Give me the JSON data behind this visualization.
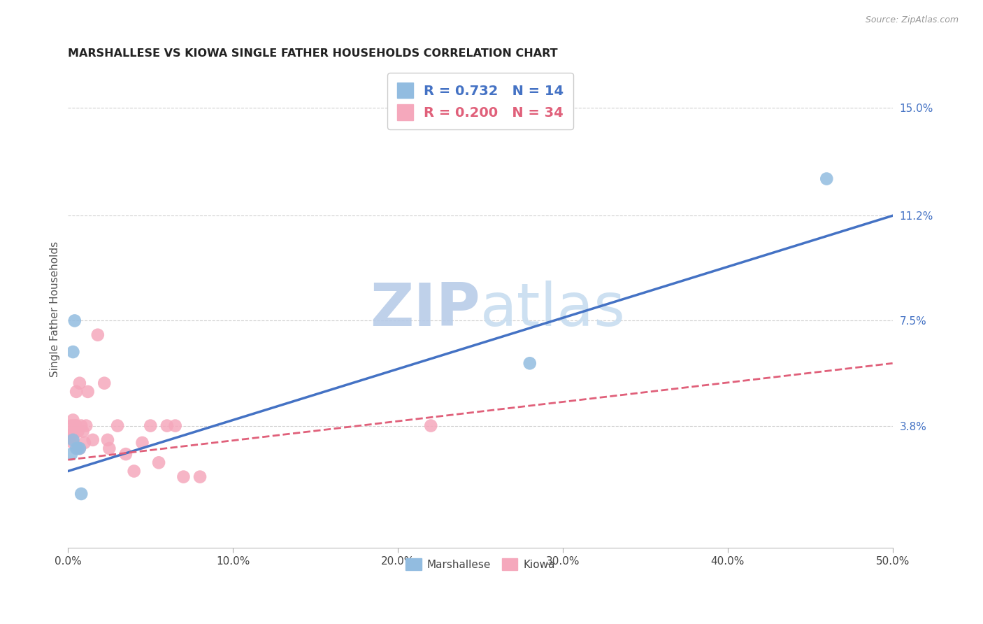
{
  "title": "MARSHALLESE VS KIOWA SINGLE FATHER HOUSEHOLDS CORRELATION CHART",
  "source": "Source: ZipAtlas.com",
  "ylabel": "Single Father Households",
  "xlim": [
    0.0,
    0.5
  ],
  "ylim": [
    -0.005,
    0.163
  ],
  "xtick_vals": [
    0.0,
    0.1,
    0.2,
    0.3,
    0.4,
    0.5
  ],
  "xtick_labels": [
    "0.0%",
    "10.0%",
    "20.0%",
    "30.0%",
    "40.0%",
    "50.0%"
  ],
  "ytick_positions": [
    0.038,
    0.075,
    0.112,
    0.15
  ],
  "ytick_labels": [
    "3.8%",
    "7.5%",
    "11.2%",
    "15.0%"
  ],
  "marshallese_R": 0.732,
  "marshallese_N": 14,
  "kiowa_R": 0.2,
  "kiowa_N": 34,
  "marshallese_color": "#92bce0",
  "kiowa_color": "#f5a8bc",
  "marshallese_line_color": "#4472c4",
  "kiowa_line_color": "#e0607a",
  "watermark_color": "#ccdff5",
  "grid_color": "#d0d0d0",
  "blue_line_x": [
    0.0,
    0.5
  ],
  "blue_line_y": [
    0.022,
    0.112
  ],
  "pink_line_x": [
    0.0,
    0.5
  ],
  "pink_line_y": [
    0.026,
    0.06
  ],
  "marshallese_x": [
    0.002,
    0.003,
    0.003,
    0.004,
    0.005,
    0.006,
    0.007,
    0.008,
    0.28,
    0.46
  ],
  "marshallese_y": [
    0.028,
    0.064,
    0.033,
    0.075,
    0.03,
    0.03,
    0.03,
    0.014,
    0.06,
    0.125
  ],
  "kiowa_x": [
    0.001,
    0.002,
    0.002,
    0.003,
    0.003,
    0.003,
    0.004,
    0.004,
    0.005,
    0.005,
    0.006,
    0.007,
    0.007,
    0.008,
    0.009,
    0.01,
    0.011,
    0.012,
    0.015,
    0.018,
    0.022,
    0.024,
    0.025,
    0.03,
    0.035,
    0.04,
    0.045,
    0.05,
    0.055,
    0.06,
    0.065,
    0.07,
    0.08,
    0.22
  ],
  "kiowa_y": [
    0.034,
    0.035,
    0.038,
    0.032,
    0.034,
    0.04,
    0.037,
    0.038,
    0.038,
    0.05,
    0.036,
    0.053,
    0.03,
    0.038,
    0.036,
    0.032,
    0.038,
    0.05,
    0.033,
    0.07,
    0.053,
    0.033,
    0.03,
    0.038,
    0.028,
    0.022,
    0.032,
    0.038,
    0.025,
    0.038,
    0.038,
    0.02,
    0.02,
    0.038
  ]
}
